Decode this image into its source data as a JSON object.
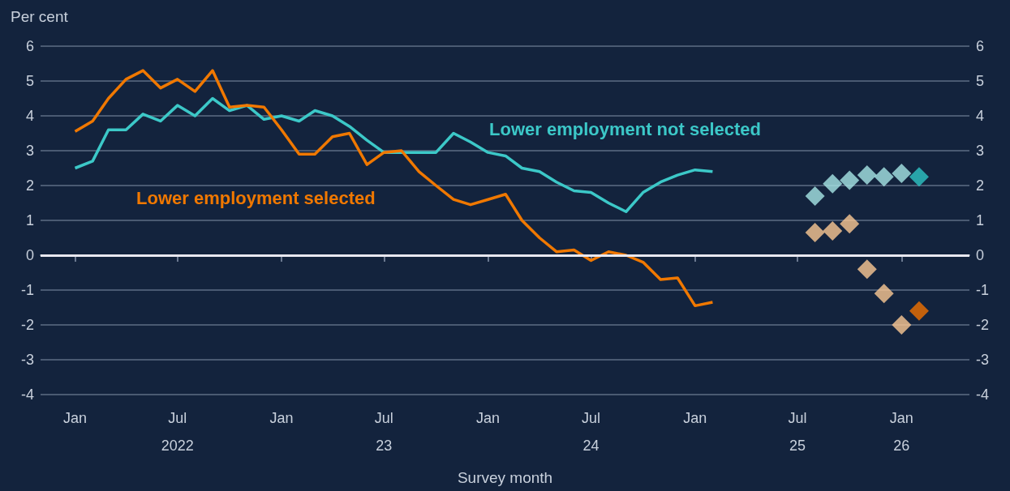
{
  "chart_data": {
    "type": "line",
    "ylabel": "Per cent",
    "xlabel": "Survey month",
    "x": [
      "2022-01",
      "2022-02",
      "2022-03",
      "2022-04",
      "2022-05",
      "2022-06",
      "2022-07",
      "2022-08",
      "2022-09",
      "2022-10",
      "2022-11",
      "2022-12",
      "2023-01",
      "2023-02",
      "2023-03",
      "2023-04",
      "2023-05",
      "2023-06",
      "2023-07",
      "2023-08",
      "2023-09",
      "2023-10",
      "2023-11",
      "2023-12",
      "2024-01",
      "2024-02",
      "2024-03",
      "2024-04",
      "2024-05",
      "2024-06",
      "2024-07",
      "2024-08",
      "2024-09",
      "2024-10",
      "2024-11",
      "2024-12",
      "2025-01",
      "2025-02"
    ],
    "series": [
      {
        "name": "Lower employment not selected",
        "color": "#3cc8c8",
        "values": [
          2.5,
          2.7,
          3.6,
          3.6,
          4.05,
          3.85,
          4.3,
          4.0,
          4.5,
          4.15,
          4.3,
          3.9,
          4.0,
          3.85,
          4.15,
          4.0,
          3.7,
          3.3,
          2.95,
          2.95,
          2.95,
          2.95,
          3.5,
          3.25,
          2.95,
          2.85,
          2.5,
          2.4,
          2.1,
          1.85,
          1.8,
          1.5,
          1.25,
          1.8,
          2.1,
          2.3,
          2.45,
          2.4
        ]
      },
      {
        "name": "Lower employment selected",
        "color": "#f07800",
        "values": [
          3.55,
          3.85,
          4.5,
          5.05,
          5.3,
          4.8,
          5.05,
          4.7,
          5.3,
          4.25,
          4.3,
          4.25,
          3.6,
          2.9,
          2.9,
          3.4,
          3.5,
          2.6,
          2.95,
          3.0,
          2.4,
          2.0,
          1.6,
          1.45,
          1.6,
          1.75,
          1.0,
          0.5,
          0.1,
          0.15,
          -0.15,
          0.1,
          0.0,
          -0.2,
          -0.7,
          -0.65,
          -1.45,
          -1.35
        ]
      },
      {
        "type": "scatter",
        "marker": "diamond",
        "x": [
          "2025-08",
          "2025-09",
          "2025-10",
          "2025-11",
          "2025-12",
          "2026-01",
          "2026-02"
        ],
        "values": [
          1.7,
          2.05,
          2.15,
          2.3,
          2.25,
          2.35,
          2.25
        ],
        "colors": [
          "#a8e6e6",
          "#a8e6e6",
          "#a8e6e6",
          "#a8e6e6",
          "#a8e6e6",
          "#a8e6e6",
          "#2ec4c4"
        ]
      },
      {
        "type": "scatter",
        "marker": "diamond",
        "x": [
          "2025-08",
          "2025-09",
          "2025-10",
          "2025-11",
          "2025-12",
          "2026-01",
          "2026-02"
        ],
        "values": [
          0.65,
          0.7,
          0.9,
          -0.4,
          -1.1,
          -2.0,
          -1.6
        ],
        "colors": [
          "#fbc894",
          "#fbc894",
          "#fbc894",
          "#fbc894",
          "#fbc894",
          "#fbc894",
          "#f07000"
        ]
      }
    ],
    "xlim": [
      "2021-11",
      "2026-05"
    ],
    "xticks": [
      {
        "value": "2022-01",
        "label": "Jan"
      },
      {
        "value": "2022-07",
        "label": "Jul\n2022"
      },
      {
        "value": "2023-01",
        "label": "Jan"
      },
      {
        "value": "2023-07",
        "label": "Jul\n23"
      },
      {
        "value": "2024-01",
        "label": "Jan"
      },
      {
        "value": "2024-07",
        "label": "Jul\n24"
      },
      {
        "value": "2025-01",
        "label": "Jan"
      },
      {
        "value": "2025-07",
        "label": "Jul\n25"
      },
      {
        "value": "2026-01",
        "label": "Jan\n26"
      }
    ],
    "ylim": [
      -4,
      6
    ],
    "yticks": [
      -4,
      -3,
      -2,
      -1,
      0,
      1,
      2,
      3,
      4,
      5,
      6
    ],
    "y2lim": [
      -4,
      6
    ],
    "y2ticks": [
      -4,
      -3,
      -2,
      -1,
      0,
      1,
      2,
      3,
      4,
      5,
      6
    ],
    "ref_lines": [
      {
        "axis": "y",
        "value": 0,
        "color": "#e8e8f0"
      }
    ],
    "grid": "y",
    "legend": false,
    "marker": "none"
  }
}
